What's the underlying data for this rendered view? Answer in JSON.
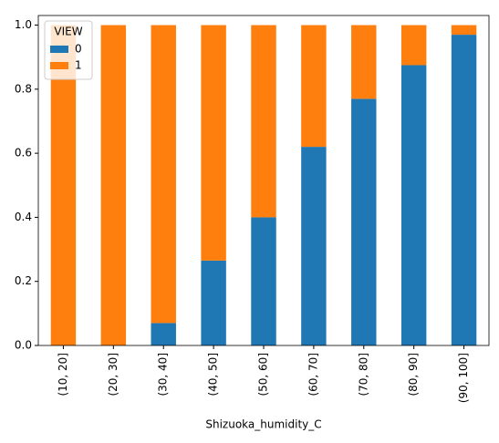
{
  "chart_data": {
    "type": "stacked_bar",
    "x_label": "Shizuoka_humidity_C",
    "legend_title": "VIEW",
    "legend_position": "upper left",
    "categories": [
      "(10, 20]",
      "(20, 30]",
      "(30, 40]",
      "(40, 50]",
      "(50, 60]",
      "(60, 70]",
      "(70, 80]",
      "(80, 90]",
      "(90, 100]"
    ],
    "series": [
      {
        "name": "0",
        "color": "#1f77b4",
        "values": [
          0,
          0,
          0.07,
          0.265,
          0.4,
          0.62,
          0.77,
          0.875,
          0.97
        ]
      },
      {
        "name": "1",
        "color": "#ff7f0e",
        "values": [
          1,
          1,
          0.93,
          0.735,
          0.6,
          0.38,
          0.23,
          0.125,
          0.03
        ]
      }
    ],
    "ylim": [
      0,
      1.03
    ],
    "yticks": [
      {
        "value": 0,
        "label": "0.0"
      },
      0.2,
      0.4,
      0.6,
      0.8,
      {
        "value": 1,
        "label": "1.0"
      }
    ]
  }
}
